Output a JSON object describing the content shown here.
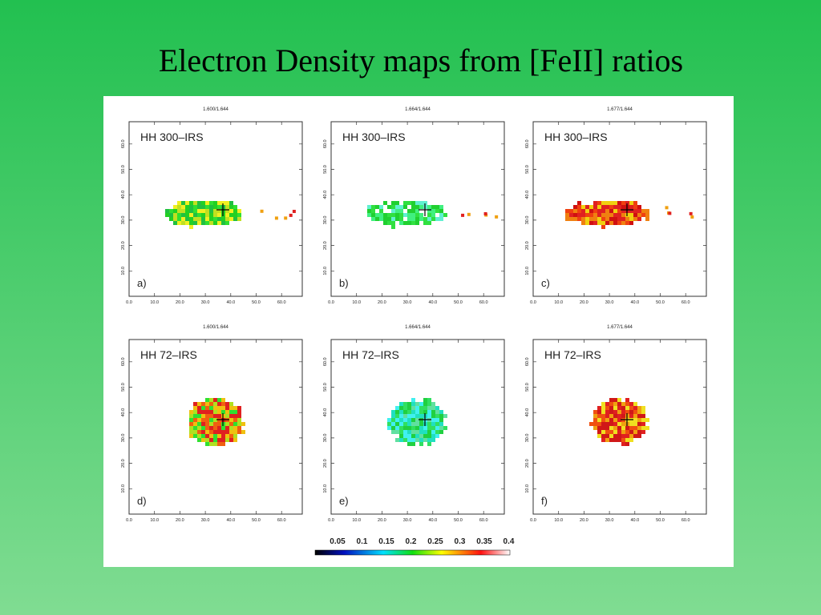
{
  "title": "Electron Density maps from [FeII] ratios",
  "panels": [
    {
      "ratio": "1.600/1.644",
      "object": "HH 300–IRS",
      "letter": "a)"
    },
    {
      "ratio": "1.664/1.644",
      "object": "HH 300–IRS",
      "letter": "b)"
    },
    {
      "ratio": "1.677/1.644",
      "object": "HH 300–IRS",
      "letter": "c)"
    },
    {
      "ratio": "1.600/1.644",
      "object": "HH 72–IRS",
      "letter": "d)"
    },
    {
      "ratio": "1.664/1.644",
      "object": "HH 72–IRS",
      "letter": "e)"
    },
    {
      "ratio": "1.677/1.644",
      "object": "HH 72–IRS",
      "letter": "f)"
    }
  ],
  "x_ticks": [
    "0.0",
    "10.0",
    "20.0",
    "30.0",
    "40.0",
    "50.0",
    "60.0"
  ],
  "y_ticks": [
    "10.0",
    "20.0",
    "30.0",
    "40.0",
    "50.0",
    "60.0"
  ],
  "colorbar": [
    "0.05",
    "0.1",
    "0.15",
    "0.2",
    "0.25",
    "0.3",
    "0.35",
    "0.4"
  ]
}
